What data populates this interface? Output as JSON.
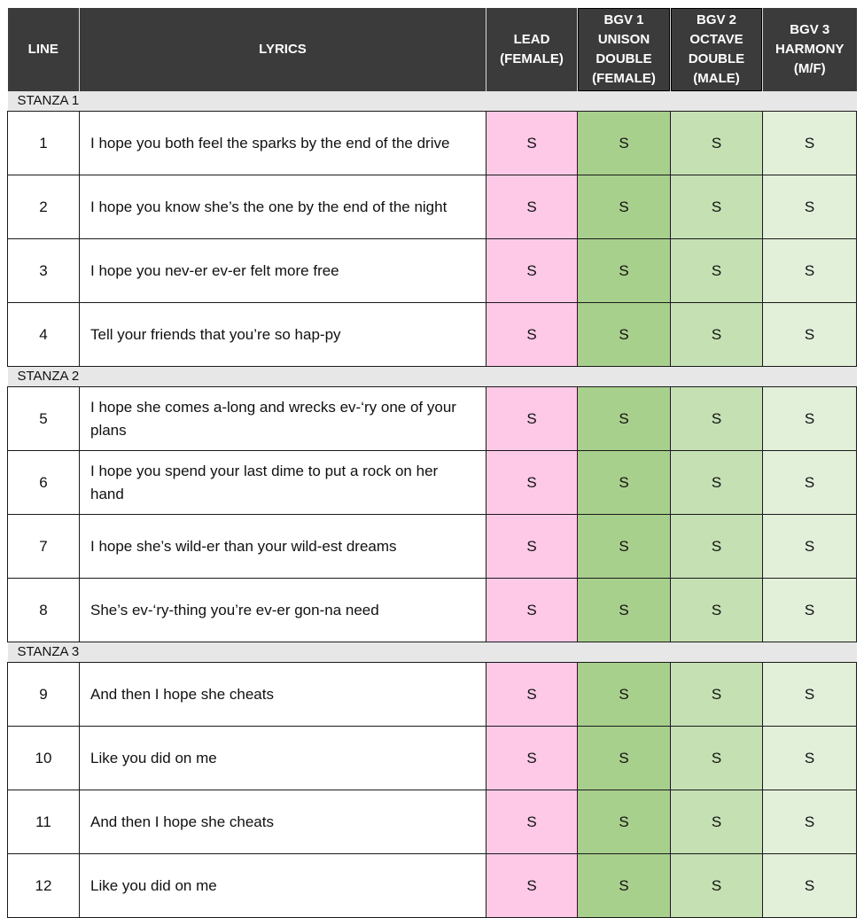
{
  "headers": {
    "line": "LINE",
    "lyrics": "LYRICS",
    "lead": "LEAD\n(FEMALE)",
    "bgv1": "BGV 1\nUNISON\nDOUBLE\n(FEMALE)",
    "bgv2": "BGV 2\nOCTAVE\nDOUBLE\n(MALE)",
    "bgv3": "BGV 3\nHARMONY\n(M/F)"
  },
  "colors": {
    "header_bg": "#3b3b3b",
    "lead": "#fdc9e7",
    "bgv1": "#a8d08d",
    "bgv2": "#c5e0b3",
    "bgv3": "#e2efd9",
    "stanza_bg": "#e7e7e7"
  },
  "stanzas": [
    {
      "label": "STANZA 1",
      "rows": [
        {
          "line": "1",
          "lyric": "I hope you both feel the sparks by the end of the drive",
          "lead": "S",
          "bgv1": "S",
          "bgv2": "S",
          "bgv3": "S"
        },
        {
          "line": "2",
          "lyric": "I hope you know she’s the one by the end of the night",
          "lead": "S",
          "bgv1": "S",
          "bgv2": "S",
          "bgv3": "S"
        },
        {
          "line": "3",
          "lyric": "I hope you nev-er ev-er felt more free",
          "lead": "S",
          "bgv1": "S",
          "bgv2": "S",
          "bgv3": "S"
        },
        {
          "line": "4",
          "lyric": "Tell your friends that you’re so hap-py",
          "lead": "S",
          "bgv1": "S",
          "bgv2": "S",
          "bgv3": "S"
        }
      ]
    },
    {
      "label": "STANZA 2",
      "rows": [
        {
          "line": "5",
          "lyric": "I hope she comes a-long and wrecks ev-‘ry one of your plans",
          "lead": "S",
          "bgv1": "S",
          "bgv2": "S",
          "bgv3": "S"
        },
        {
          "line": "6",
          "lyric": "I hope you spend your last dime to put a rock on her hand",
          "lead": "S",
          "bgv1": "S",
          "bgv2": "S",
          "bgv3": "S"
        },
        {
          "line": "7",
          "lyric": "I hope she’s wild-er than your wild-est dreams",
          "lead": "S",
          "bgv1": "S",
          "bgv2": "S",
          "bgv3": "S"
        },
        {
          "line": "8",
          "lyric": "She’s ev-‘ry-thing you’re ev-er gon-na need",
          "lead": "S",
          "bgv1": "S",
          "bgv2": "S",
          "bgv3": "S"
        }
      ]
    },
    {
      "label": "STANZA 3",
      "rows": [
        {
          "line": "9",
          "lyric": "And then I hope she cheats",
          "lead": "S",
          "bgv1": "S",
          "bgv2": "S",
          "bgv3": "S"
        },
        {
          "line": "10",
          "lyric": "Like you did on me",
          "lead": "S",
          "bgv1": "S",
          "bgv2": "S",
          "bgv3": "S"
        },
        {
          "line": "11",
          "lyric": "And then I hope she cheats",
          "lead": "S",
          "bgv1": "S",
          "bgv2": "S",
          "bgv3": "S"
        },
        {
          "line": "12",
          "lyric": "Like you did on me",
          "lead": "S",
          "bgv1": "S",
          "bgv2": "S",
          "bgv3": "S"
        }
      ]
    }
  ]
}
